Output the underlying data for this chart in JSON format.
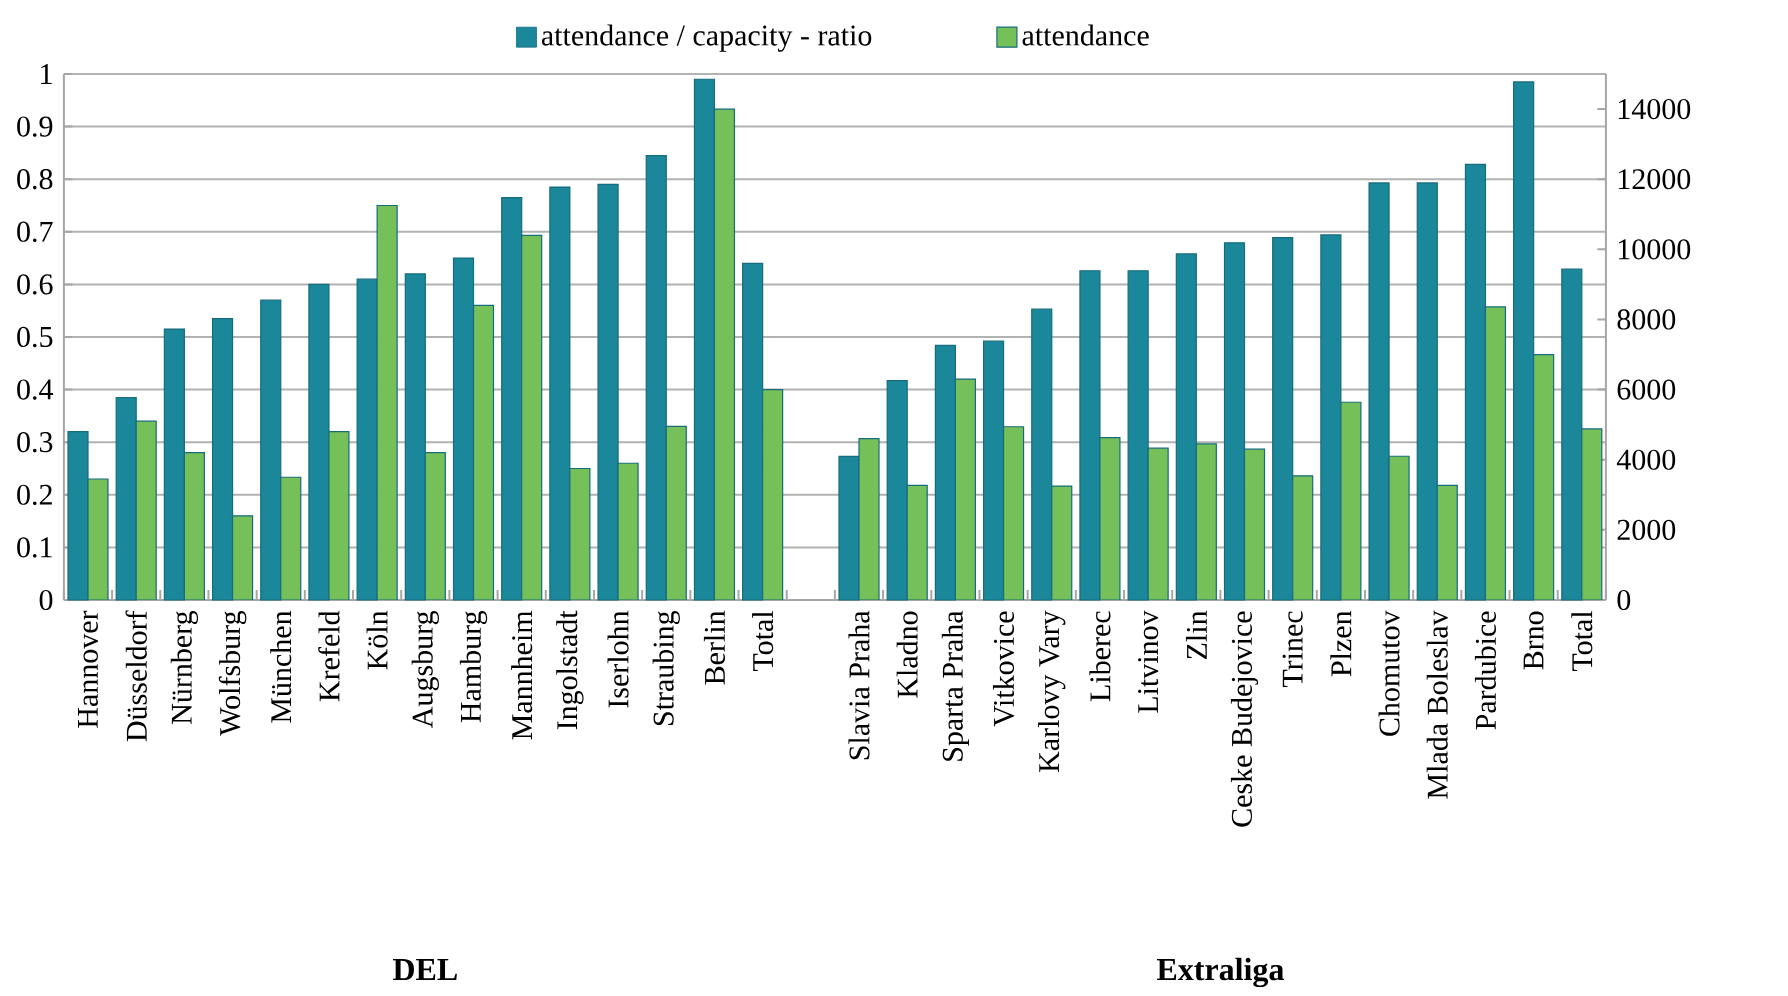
{
  "chart_data": {
    "type": "bar",
    "categories": [
      "Hannover",
      "Düsseldorf",
      "Nürnberg",
      "Wolfsburg",
      "München",
      "Krefeld",
      "Köln",
      "Augsburg",
      "Hamburg",
      "Mannheim",
      "Ingolstadt",
      "Iserlohn",
      "Straubing",
      "Berlin",
      "Total",
      null,
      "Slavia Praha",
      "Kladno",
      "Sparta Praha",
      "Vitkovice",
      "Karlovy Vary",
      "Liberec",
      "Litvinov",
      "Zlin",
      "Ceske Budejovice",
      "Trinec",
      "Plzen",
      "Chomutov",
      "Mlada Boleslav",
      "Pardubice",
      "Brno",
      "Total"
    ],
    "series": [
      {
        "name": "attendance / capacity - ratio",
        "color": "#1b879b",
        "values": [
          0.32,
          0.385,
          0.515,
          0.535,
          0.57,
          0.6,
          0.61,
          0.62,
          0.65,
          0.765,
          0.785,
          0.79,
          0.845,
          0.99,
          0.64,
          null,
          0.273,
          0.417,
          0.484,
          0.492,
          0.553,
          0.626,
          0.626,
          0.658,
          0.679,
          0.689,
          0.694,
          0.793,
          0.793,
          0.828,
          0.985,
          0.629
        ]
      },
      {
        "name": "attendance",
        "color": "#76c05a",
        "axis": "y2",
        "values": [
          3450,
          5100,
          4200,
          2400,
          3500,
          4800,
          11250,
          4200,
          8400,
          10400,
          3750,
          3900,
          4950,
          14000,
          6000,
          null,
          4600,
          3270,
          6300,
          4940,
          3250,
          4630,
          4330,
          4450,
          4300,
          3540,
          5640,
          4100,
          3270,
          8360,
          7000,
          4880
        ]
      }
    ],
    "ylim": [
      0,
      1
    ],
    "yticks": [
      0,
      0.1,
      0.2,
      0.3,
      0.4,
      0.5,
      0.6,
      0.7,
      0.8,
      0.9,
      1
    ],
    "y2lim": [
      0,
      15000
    ],
    "y2ticks": [
      0,
      2000,
      4000,
      6000,
      8000,
      10000,
      12000,
      14000
    ],
    "grid": "y",
    "legend": "top",
    "annotations": [
      "DEL",
      "Extraliga"
    ]
  }
}
